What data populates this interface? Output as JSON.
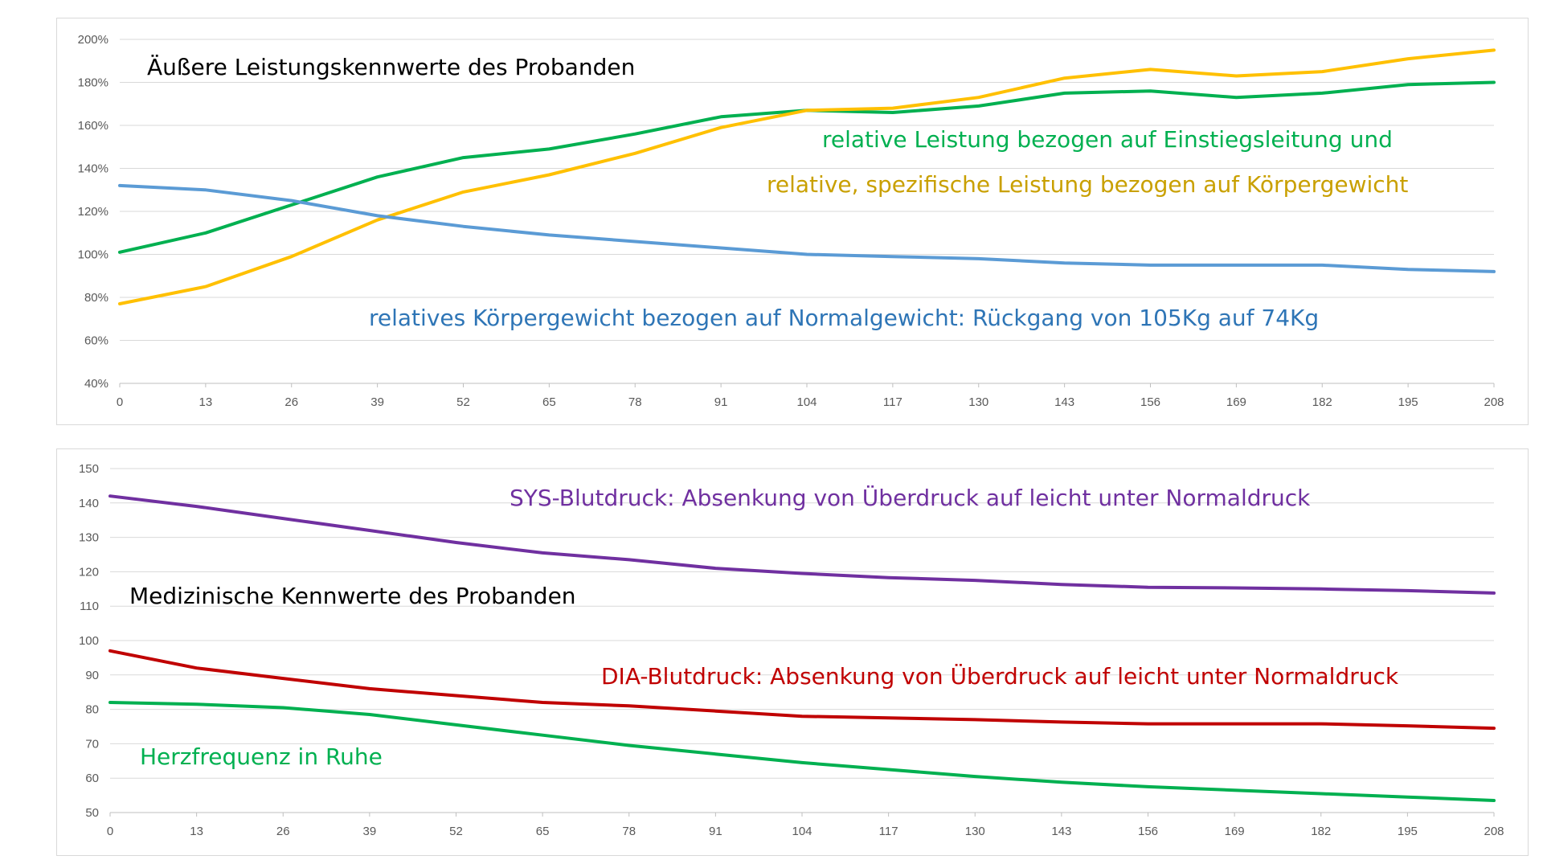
{
  "chart_data": [
    {
      "type": "line",
      "title": "Äußere Leistungskennwerte des Probanden",
      "ylim": [
        0.4,
        2.0
      ],
      "ytick_labels": [
        "40%",
        "60%",
        "80%",
        "100%",
        "120%",
        "140%",
        "160%",
        "180%",
        "200%"
      ],
      "xlim": [
        0,
        208
      ],
      "xtick_labels": [
        "0",
        "13",
        "26",
        "39",
        "52",
        "65",
        "78",
        "91",
        "104",
        "117",
        "130",
        "143",
        "156",
        "169",
        "182",
        "195",
        "208"
      ],
      "grid": true,
      "x": [
        0,
        13,
        26,
        39,
        52,
        65,
        78,
        91,
        104,
        117,
        130,
        143,
        156,
        169,
        182,
        195,
        208
      ],
      "series": [
        {
          "color": "#00b050",
          "values": [
            1.01,
            1.1,
            1.23,
            1.36,
            1.45,
            1.49,
            1.56,
            1.64,
            1.67,
            1.66,
            1.69,
            1.75,
            1.76,
            1.73,
            1.75,
            1.79,
            1.8
          ]
        },
        {
          "color": "#ffc000",
          "values": [
            0.77,
            0.85,
            0.99,
            1.16,
            1.29,
            1.37,
            1.47,
            1.59,
            1.67,
            1.68,
            1.73,
            1.82,
            1.86,
            1.83,
            1.85,
            1.91,
            1.95
          ]
        },
        {
          "color": "#5b9bd5",
          "values": [
            1.32,
            1.3,
            1.25,
            1.18,
            1.13,
            1.09,
            1.06,
            1.03,
            1.0,
            0.99,
            0.98,
            0.96,
            0.95,
            0.95,
            0.95,
            0.93,
            0.92
          ]
        }
      ],
      "annotations": [
        {
          "text": "relative Leistung  bezogen auf Einstiegsleitung und",
          "color": "#00b050"
        },
        {
          "text": "relative, spezifische Leistung  bezogen auf Körpergewicht",
          "color": "#c9a000"
        },
        {
          "text": "relatives Körpergewicht bezogen auf Normalgewicht:  Rückgang von 105Kg auf 74Kg",
          "color": "#2e75b6"
        }
      ]
    },
    {
      "type": "line",
      "title": "Medizinische  Kennwerte des Probanden",
      "ylim": [
        50,
        150
      ],
      "ytick_labels": [
        "50",
        "60",
        "70",
        "80",
        "90",
        "100",
        "110",
        "120",
        "130",
        "140",
        "150"
      ],
      "xlim": [
        0,
        208
      ],
      "xtick_labels": [
        "0",
        "13",
        "26",
        "39",
        "52",
        "65",
        "78",
        "91",
        "104",
        "117",
        "130",
        "143",
        "156",
        "169",
        "182",
        "195",
        "208"
      ],
      "grid": true,
      "x": [
        0,
        13,
        26,
        39,
        52,
        65,
        78,
        91,
        104,
        117,
        130,
        143,
        156,
        169,
        182,
        195,
        208
      ],
      "series": [
        {
          "color": "#7030a0",
          "values": [
            142,
            139,
            135.5,
            132,
            128.5,
            125.5,
            123.5,
            121,
            119.5,
            118.3,
            117.5,
            116.3,
            115.5,
            115.3,
            115,
            114.5,
            113.8
          ]
        },
        {
          "color": "#c00000",
          "values": [
            97,
            92,
            89,
            86,
            84,
            82,
            81,
            79.5,
            78,
            77.5,
            77,
            76.3,
            75.8,
            75.8,
            75.8,
            75.2,
            74.5
          ]
        },
        {
          "color": "#00b050",
          "values": [
            82,
            81.5,
            80.5,
            78.5,
            75.5,
            72.5,
            69.5,
            67,
            64.5,
            62.5,
            60.5,
            58.8,
            57.5,
            56.5,
            55.5,
            54.5,
            53.5
          ]
        }
      ],
      "annotations": [
        {
          "text": "SYS-Blutdruck: Absenkung von Überdruck auf  leicht unter Normaldruck",
          "color": "#7030a0"
        },
        {
          "text": "DIA-Blutdruck: Absenkung von Überdruck auf  leicht unter Normaldruck",
          "color": "#c00000"
        },
        {
          "text": "Herzfrequenz in Ruhe",
          "color": "#00b050"
        }
      ]
    }
  ]
}
